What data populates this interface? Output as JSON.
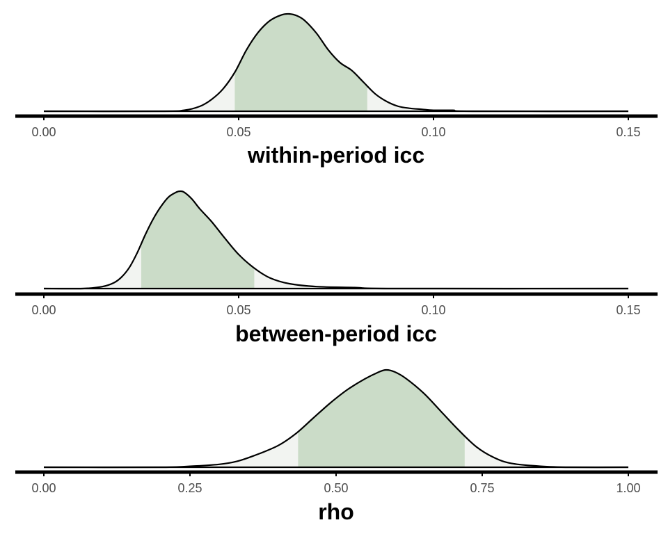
{
  "style": {
    "interval_fill": "#cbdcc8",
    "tail_fill": "#f2f4f1",
    "line_color": "#000000",
    "axis_color": "#000000"
  },
  "chart_data": [
    {
      "type": "area",
      "xlabel": "within-period icc",
      "xlim": [
        0,
        0.15
      ],
      "ticks": [
        0.0,
        0.05,
        0.1,
        0.15
      ],
      "tick_labels": [
        "0.00",
        "0.05",
        "0.10",
        "0.15"
      ],
      "shaded_interval": [
        0.049,
        0.083
      ],
      "density": {
        "x": [
          0.0,
          0.03,
          0.036,
          0.04,
          0.043,
          0.046,
          0.049,
          0.052,
          0.055,
          0.058,
          0.061,
          0.063,
          0.065,
          0.067,
          0.07,
          0.073,
          0.076,
          0.079,
          0.082,
          0.085,
          0.088,
          0.091,
          0.094,
          0.097,
          0.1,
          0.105,
          0.11,
          0.15
        ],
        "y": [
          0.0,
          0.0,
          0.01,
          0.05,
          0.12,
          0.23,
          0.4,
          0.63,
          0.81,
          0.93,
          0.99,
          1.0,
          0.98,
          0.93,
          0.8,
          0.63,
          0.5,
          0.42,
          0.3,
          0.18,
          0.1,
          0.05,
          0.03,
          0.02,
          0.01,
          0.01,
          0.0,
          0.0
        ]
      }
    },
    {
      "type": "area",
      "xlabel": "between-period icc",
      "xlim": [
        0,
        0.15
      ],
      "ticks": [
        0.0,
        0.05,
        0.1,
        0.15
      ],
      "tick_labels": [
        "0.00",
        "0.05",
        "0.10",
        "0.15"
      ],
      "shaded_interval": [
        0.025,
        0.054
      ],
      "density": {
        "x": [
          0.0,
          0.01,
          0.015,
          0.018,
          0.02,
          0.022,
          0.024,
          0.026,
          0.028,
          0.03,
          0.032,
          0.034,
          0.035,
          0.036,
          0.038,
          0.04,
          0.043,
          0.046,
          0.05,
          0.054,
          0.058,
          0.063,
          0.07,
          0.08,
          0.09,
          0.15
        ],
        "y": [
          0.0,
          0.0,
          0.02,
          0.06,
          0.12,
          0.22,
          0.37,
          0.55,
          0.71,
          0.84,
          0.94,
          0.99,
          1.0,
          0.99,
          0.92,
          0.82,
          0.69,
          0.54,
          0.35,
          0.21,
          0.11,
          0.05,
          0.02,
          0.01,
          0.0,
          0.0
        ]
      }
    },
    {
      "type": "area",
      "xlabel": "rho",
      "xlim": [
        0,
        1
      ],
      "ticks": [
        0.0,
        0.25,
        0.5,
        0.75,
        1.0
      ],
      "tick_labels": [
        "0.00",
        "0.25",
        "0.50",
        "0.75",
        "1.00"
      ],
      "shaded_interval": [
        0.435,
        0.72
      ],
      "density": {
        "x": [
          0.0,
          0.2,
          0.25,
          0.3,
          0.33,
          0.36,
          0.4,
          0.43,
          0.46,
          0.49,
          0.52,
          0.55,
          0.57,
          0.585,
          0.6,
          0.62,
          0.65,
          0.68,
          0.71,
          0.74,
          0.77,
          0.8,
          0.85,
          0.9,
          1.0
        ],
        "y": [
          0.0,
          0.0,
          0.01,
          0.03,
          0.06,
          0.12,
          0.22,
          0.34,
          0.5,
          0.66,
          0.8,
          0.91,
          0.97,
          1.0,
          0.98,
          0.91,
          0.76,
          0.57,
          0.38,
          0.21,
          0.1,
          0.04,
          0.01,
          0.0,
          0.0
        ]
      }
    }
  ]
}
